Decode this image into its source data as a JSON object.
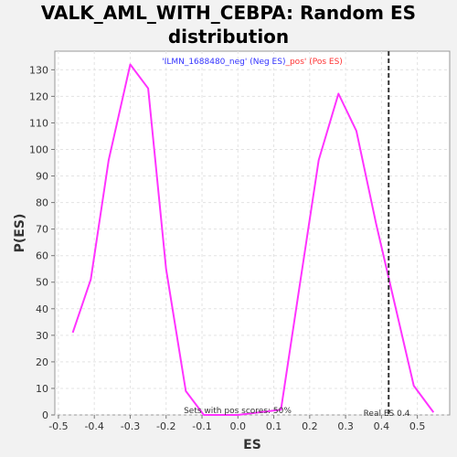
{
  "chart_data": {
    "type": "line",
    "title_line1": "VALK_AML_WITH_CEBPA: Random ES",
    "title_line2": "distribution",
    "xlabel": "ES",
    "ylabel": "P(ES)",
    "xlim": [
      -0.51,
      0.59
    ],
    "ylim": [
      0,
      137
    ],
    "x_ticks": [
      -0.5,
      -0.4,
      -0.3,
      -0.2,
      -0.1,
      0.0,
      0.1,
      0.2,
      0.3,
      0.4,
      0.5
    ],
    "x_tick_labels": [
      "-0.5",
      "-0.4",
      "-0.3",
      "-0.2",
      "-0.1",
      "0.0",
      "0.1",
      "0.2",
      "0.3",
      "0.4",
      "0.5"
    ],
    "y_ticks": [
      0,
      10,
      20,
      30,
      40,
      50,
      60,
      70,
      80,
      90,
      100,
      110,
      120,
      130
    ],
    "grid": true,
    "legend": {
      "neg_text": "'ILMN_1688480_neg' (Neg ES)",
      "pos_text": "_pos' (Pos ES)",
      "neg_color": "#3333ff",
      "pos_color": "#ff3333"
    },
    "series": [
      {
        "color": "#ff33ff",
        "points": [
          [
            -0.46,
            31
          ],
          [
            -0.41,
            51
          ],
          [
            -0.36,
            96
          ],
          [
            -0.3,
            132
          ],
          [
            -0.25,
            123
          ],
          [
            -0.2,
            55
          ],
          [
            -0.145,
            9
          ],
          [
            -0.095,
            0
          ],
          [
            0.0,
            0
          ],
          [
            0.12,
            2
          ],
          [
            0.17,
            47
          ],
          [
            0.225,
            96
          ],
          [
            0.28,
            121
          ],
          [
            0.33,
            107
          ],
          [
            0.385,
            72
          ],
          [
            0.435,
            43
          ],
          [
            0.49,
            11
          ],
          [
            0.545,
            1
          ]
        ]
      }
    ],
    "real_es": 0.42,
    "real_es_label": "Real ES 0.4",
    "footnote": "Sets with pos scores: 50%"
  }
}
